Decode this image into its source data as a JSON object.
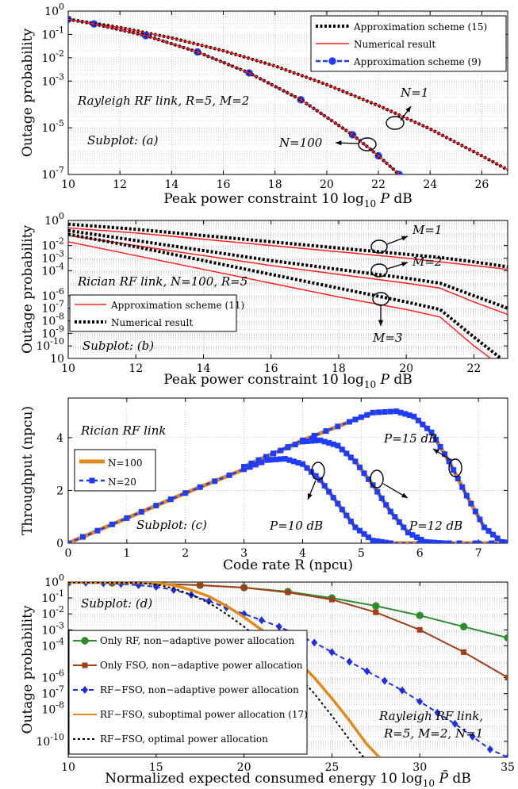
{
  "chart_data": [
    {
      "type": "line",
      "id": "a",
      "xlabel": "Peak power constraint 10 log10 P dB",
      "xlabel_parts": [
        "Peak power constraint 10",
        "log",
        "10",
        " P",
        " dB"
      ],
      "ylabel": "Outage probability",
      "xlim": [
        10,
        27
      ],
      "ylim_log10": [
        -7,
        0
      ],
      "yscale": "log",
      "grid": true,
      "legend_position": "top-right",
      "x_ticks": [
        10,
        12,
        14,
        16,
        18,
        20,
        22,
        24,
        26
      ],
      "y_ticks": [
        {
          "base": "10",
          "exp": "0",
          "v": 0
        },
        {
          "base": "10",
          "exp": "-1",
          "v": -1
        },
        {
          "base": "10",
          "exp": "-2",
          "v": -2
        },
        {
          "base": "10",
          "exp": "-3",
          "v": -3
        },
        {
          "base": "10",
          "exp": "-5",
          "v": -5
        },
        {
          "base": "10",
          "exp": "-7",
          "v": -7
        }
      ],
      "annotations": [
        "Rayleigh RF link, R=5, M=2",
        "Subplot: (a)",
        "N=1",
        "N=100"
      ],
      "series": [
        {
          "name": "Approximation scheme (15)",
          "style": "dotted-black",
          "x": [
            10,
            12,
            14,
            16,
            18,
            20,
            22,
            24,
            26,
            27
          ],
          "y_log10": [
            -0.35,
            -0.7,
            -1.15,
            -1.7,
            -2.35,
            -3.15,
            -4.05,
            -5.05,
            -6.2,
            -6.8
          ]
        },
        {
          "name": "Numerical result",
          "style": "solid-red",
          "x": [
            10,
            12,
            14,
            16,
            18,
            20,
            22,
            24,
            26,
            27
          ],
          "y_log10": [
            -0.35,
            -0.7,
            -1.15,
            -1.7,
            -2.35,
            -3.15,
            -4.05,
            -5.05,
            -6.2,
            -6.8
          ]
        },
        {
          "name": "Approximation scheme (9)",
          "style": "blue-dashed-circle",
          "x": [
            10,
            11,
            13,
            15,
            17,
            19,
            21,
            22,
            22.8
          ],
          "y_log10": [
            -0.35,
            -0.55,
            -1.05,
            -1.75,
            -2.65,
            -3.8,
            -5.3,
            -6.2,
            -7
          ]
        },
        {
          "name": "",
          "style": "dotted-black",
          "x": [
            10,
            11,
            13,
            15,
            17,
            19,
            21,
            22,
            22.8
          ],
          "y_log10": [
            -0.35,
            -0.55,
            -1.05,
            -1.75,
            -2.65,
            -3.8,
            -5.3,
            -6.2,
            -7
          ]
        },
        {
          "name": "",
          "style": "solid-red",
          "x": [
            10,
            11,
            13,
            15,
            17,
            19,
            21,
            22,
            22.8
          ],
          "y_log10": [
            -0.35,
            -0.55,
            -1.05,
            -1.75,
            -2.65,
            -3.8,
            -5.3,
            -6.2,
            -7
          ]
        }
      ]
    },
    {
      "type": "line",
      "id": "b",
      "xlabel": "Peak power constraint 10 log10 P dB",
      "xlabel_parts": [
        "Peak power constraint 10",
        "log",
        "10",
        " P",
        " dB"
      ],
      "ylabel": "Outage probability",
      "xlim": [
        10,
        23
      ],
      "ylim_log10": [
        -11,
        0
      ],
      "yscale": "log",
      "grid": true,
      "legend_position": "bottom-left",
      "x_ticks": [
        10,
        12,
        14,
        16,
        18,
        20,
        22
      ],
      "y_ticks": [
        {
          "base": "10",
          "exp": "0",
          "v": 0
        },
        {
          "base": "10",
          "exp": "-2",
          "v": -2
        },
        {
          "base": "10",
          "exp": "-3",
          "v": -3
        },
        {
          "base": "10",
          "exp": "-4",
          "v": -4
        },
        {
          "base": "10",
          "exp": "-6",
          "v": -6
        },
        {
          "base": "10",
          "exp": "-7",
          "v": -7
        },
        {
          "base": "10",
          "exp": "-8",
          "v": -8
        },
        {
          "base": "10",
          "exp": "-9",
          "v": -9
        },
        {
          "base": "10",
          "exp": "-10",
          "v": -10
        },
        {
          "base": "10",
          "exp": "",
          "v": -11
        }
      ],
      "annotations": [
        "Rician RF link, N=100, R=5",
        "Subplot: (b)",
        "M=1",
        "M=2",
        "M=3"
      ],
      "series": [
        {
          "name": "Approximation scheme (11)",
          "style": "solid-red",
          "x": [
            10,
            12,
            14,
            16,
            18,
            20,
            21,
            22,
            23
          ],
          "y_log10": [
            -0.6,
            -1.0,
            -1.5,
            -2.0,
            -2.5,
            -3.0,
            -3.3,
            -3.6,
            -3.9
          ]
        },
        {
          "name": "Numerical result",
          "style": "dotted-black",
          "x": [
            10,
            12,
            14,
            16,
            18,
            20,
            21,
            22,
            23
          ],
          "y_log10": [
            -0.3,
            -0.7,
            -1.2,
            -1.7,
            -2.2,
            -2.7,
            -2.95,
            -3.3,
            -3.7
          ]
        },
        {
          "name": "",
          "style": "solid-red",
          "x": [
            10,
            12,
            14,
            16,
            18,
            20,
            21,
            22,
            23
          ],
          "y_log10": [
            -1.2,
            -2.0,
            -2.8,
            -3.6,
            -4.3,
            -5.0,
            -5.4,
            -6.5,
            -7.5
          ]
        },
        {
          "name": "",
          "style": "dotted-black",
          "x": [
            10,
            12,
            14,
            16,
            18,
            20,
            21,
            22,
            23
          ],
          "y_log10": [
            -0.8,
            -1.6,
            -2.4,
            -3.2,
            -3.9,
            -4.6,
            -5.0,
            -6.0,
            -7.0
          ]
        },
        {
          "name": "",
          "style": "solid-red",
          "x": [
            10,
            12,
            14,
            16,
            18,
            20,
            21,
            22,
            22.5
          ],
          "y_log10": [
            -1.7,
            -2.8,
            -3.9,
            -5.0,
            -6.1,
            -7.1,
            -7.7,
            -10.0,
            -11.0
          ]
        },
        {
          "name": "",
          "style": "dotted-black",
          "x": [
            10,
            12,
            14,
            16,
            18,
            20,
            21,
            22,
            22.8
          ],
          "y_log10": [
            -1.1,
            -2.1,
            -3.2,
            -4.3,
            -5.4,
            -6.5,
            -7.1,
            -9.3,
            -11.0
          ]
        }
      ]
    },
    {
      "type": "line",
      "id": "c",
      "xlabel": "Code rate R (npcu)",
      "ylabel": "Throughput (npcu)",
      "xlim": [
        0,
        7.5
      ],
      "ylim": [
        0,
        5.5
      ],
      "grid": true,
      "legend_position": "left",
      "x_ticks": [
        0,
        1,
        2,
        3,
        4,
        5,
        6,
        7
      ],
      "y_ticks": [
        0,
        2,
        4
      ],
      "annotations": [
        "Rician RF link",
        "Subplot: (c)",
        "P=10 dB",
        "P=12 dB",
        "P=15 dB"
      ],
      "series": [
        {
          "name": "N=100",
          "style": "thick-orange",
          "group": "P=10 dB",
          "x": [
            0,
            1,
            2,
            3,
            3.4,
            3.7,
            4.0,
            4.3,
            4.6,
            4.9,
            5.2,
            5.5,
            7.5
          ],
          "y": [
            0,
            0.95,
            1.9,
            2.8,
            3.15,
            3.2,
            3.0,
            2.4,
            1.5,
            0.6,
            0.1,
            0,
            0
          ]
        },
        {
          "name": "N=20",
          "style": "blue-dashed-square",
          "group": "P=10 dB",
          "x": [
            0,
            1,
            2,
            3,
            3.4,
            3.7,
            4.0,
            4.3,
            4.6,
            4.9,
            5.2,
            5.5,
            7.5
          ],
          "y": [
            0,
            0.95,
            1.9,
            2.8,
            3.15,
            3.2,
            3.0,
            2.4,
            1.5,
            0.6,
            0.1,
            0,
            0
          ]
        },
        {
          "name": "",
          "style": "thick-orange",
          "group": "P=12 dB",
          "x": [
            3.0,
            3.5,
            4.0,
            4.3,
            4.6,
            4.9,
            5.2,
            5.5,
            5.8,
            6.1,
            6.4,
            7.5
          ],
          "y": [
            2.9,
            3.4,
            3.85,
            3.9,
            3.7,
            3.1,
            2.2,
            1.2,
            0.4,
            0.05,
            0,
            0
          ]
        },
        {
          "name": "",
          "style": "blue-dashed-square",
          "group": "P=12 dB",
          "x": [
            3.0,
            3.5,
            4.0,
            4.3,
            4.6,
            4.9,
            5.2,
            5.5,
            5.8,
            6.1,
            6.4,
            7.5
          ],
          "y": [
            2.9,
            3.4,
            3.85,
            3.9,
            3.7,
            3.1,
            2.2,
            1.2,
            0.4,
            0.05,
            0,
            0
          ]
        },
        {
          "name": "",
          "style": "thick-orange",
          "group": "P=15 dB",
          "x": [
            3.0,
            4.0,
            4.8,
            5.2,
            5.6,
            5.9,
            6.2,
            6.5,
            6.8,
            7.1,
            7.4,
            7.5
          ],
          "y": [
            2.9,
            3.9,
            4.6,
            4.95,
            5.0,
            4.8,
            4.2,
            3.1,
            1.8,
            0.6,
            0.05,
            0
          ]
        },
        {
          "name": "",
          "style": "blue-dashed-square",
          "group": "P=15 dB",
          "x": [
            3.0,
            4.0,
            4.8,
            5.2,
            5.6,
            5.9,
            6.2,
            6.5,
            6.8,
            7.1,
            7.4,
            7.5
          ],
          "y": [
            2.9,
            3.9,
            4.6,
            4.95,
            5.0,
            4.8,
            4.2,
            3.1,
            1.8,
            0.6,
            0.05,
            0
          ]
        }
      ]
    },
    {
      "type": "line",
      "id": "d",
      "xlabel": "Normalized expected consumed energy 10 log10 P̄ dB",
      "xlabel_parts": [
        "Normalized expected consumed energy 10",
        "log",
        "10",
        " P̄",
        " dB"
      ],
      "ylabel": "Outage probability",
      "xlim": [
        10,
        35
      ],
      "ylim_log10": [
        -11,
        0
      ],
      "yscale": "log",
      "grid": true,
      "legend_position": "bottom-left",
      "x_ticks": [
        10,
        15,
        20,
        25,
        30,
        35
      ],
      "y_ticks": [
        {
          "base": "10",
          "exp": "0",
          "v": 0
        },
        {
          "base": "10",
          "exp": "-1",
          "v": -1
        },
        {
          "base": "10",
          "exp": "-2",
          "v": -2
        },
        {
          "base": "10",
          "exp": "-3",
          "v": -3
        },
        {
          "base": "10",
          "exp": "-4",
          "v": -4
        },
        {
          "base": "10",
          "exp": "-6",
          "v": -6
        },
        {
          "base": "10",
          "exp": "-7",
          "v": -7
        },
        {
          "base": "10",
          "exp": "-8",
          "v": -8
        },
        {
          "base": "10",
          "exp": "-10",
          "v": -10
        }
      ],
      "annotations": [
        "Subplot: (d)",
        "Rayleigh RF link,",
        "R=5, M=2, N=1"
      ],
      "series": [
        {
          "name": "Only RF, non−adaptive power allocation",
          "color": "#2e8b2e",
          "marker": "circle",
          "dash": "",
          "x": [
            10,
            12.5,
            15,
            17.5,
            20,
            22.5,
            25,
            27.5,
            30,
            32.5,
            35
          ],
          "y_log10": [
            -0.02,
            -0.05,
            -0.1,
            -0.2,
            -0.35,
            -0.6,
            -1.0,
            -1.5,
            -2.1,
            -2.8,
            -3.5
          ]
        },
        {
          "name": "Only FSO, non−adaptive power allocation",
          "color": "#a0401a",
          "marker": "square",
          "dash": "",
          "x": [
            10,
            12.5,
            15,
            17.5,
            20,
            22.5,
            25,
            27.5,
            30,
            32.5,
            35
          ],
          "y_log10": [
            -0.02,
            -0.05,
            -0.1,
            -0.2,
            -0.35,
            -0.65,
            -1.1,
            -1.9,
            -3.0,
            -4.4,
            -6.0
          ]
        },
        {
          "name": "RF−FSO, non−adaptive power allocation",
          "color": "#1f2ee0",
          "marker": "diamond",
          "dash": "6,4",
          "x": [
            10,
            11,
            12,
            13,
            14,
            15,
            16,
            17,
            18,
            19,
            20,
            21,
            22,
            23,
            24,
            25,
            26,
            27,
            28,
            29,
            30,
            31,
            32,
            33,
            34,
            35
          ],
          "y_log10": [
            -0.02,
            -0.04,
            -0.08,
            -0.12,
            -0.2,
            -0.3,
            -0.5,
            -0.8,
            -1.2,
            -1.6,
            -2.0,
            -2.4,
            -2.8,
            -3.3,
            -3.8,
            -4.4,
            -5.0,
            -5.6,
            -6.2,
            -6.8,
            -7.5,
            -8.2,
            -8.9,
            -9.7,
            -10.5,
            -11.0
          ]
        },
        {
          "name": "RF−FSO, suboptimal power allocation (17)",
          "color": "#e08a1e",
          "marker": "",
          "dash": "",
          "x": [
            10,
            15,
            16,
            17,
            18,
            19,
            20,
            21,
            22,
            23,
            24,
            25,
            26,
            27,
            27.7
          ],
          "y_log10": [
            -0.02,
            -0.05,
            -0.2,
            -0.5,
            -0.9,
            -1.5,
            -2.2,
            -3.0,
            -3.9,
            -4.9,
            -6.0,
            -7.3,
            -8.7,
            -10.2,
            -11.0
          ]
        },
        {
          "name": "RF−FSO, optimal power allocation",
          "color": "#000000",
          "marker": "",
          "dash": "3,3",
          "x": [
            10,
            14,
            15,
            16,
            17,
            18,
            19,
            20,
            21,
            22,
            23,
            24,
            25,
            26,
            26.8
          ],
          "y_log10": [
            -0.02,
            -0.05,
            -0.15,
            -0.4,
            -0.8,
            -1.3,
            -2.0,
            -2.8,
            -3.7,
            -4.7,
            -5.8,
            -7.0,
            -8.4,
            -9.9,
            -11.0
          ]
        }
      ]
    }
  ]
}
